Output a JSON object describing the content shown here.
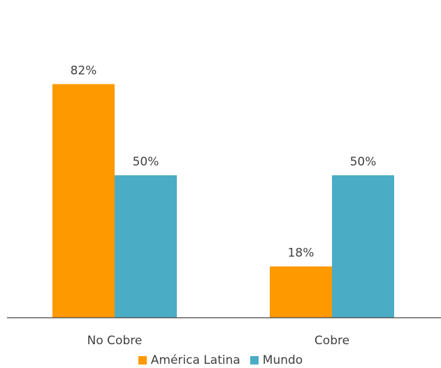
{
  "chart_data": {
    "type": "bar",
    "categories": [
      "No Cobre",
      "Cobre"
    ],
    "series": [
      {
        "name": "América Latina",
        "values": [
          82,
          18
        ],
        "labels": [
          "82%",
          "18%"
        ],
        "color": "#FF9900"
      },
      {
        "name": "Mundo",
        "values": [
          50,
          50
        ],
        "labels": [
          "50%",
          "50%"
        ],
        "color": "#4BACC6"
      }
    ],
    "ylim": [
      0,
      100
    ],
    "grid": false,
    "legend_position": "bottom"
  }
}
